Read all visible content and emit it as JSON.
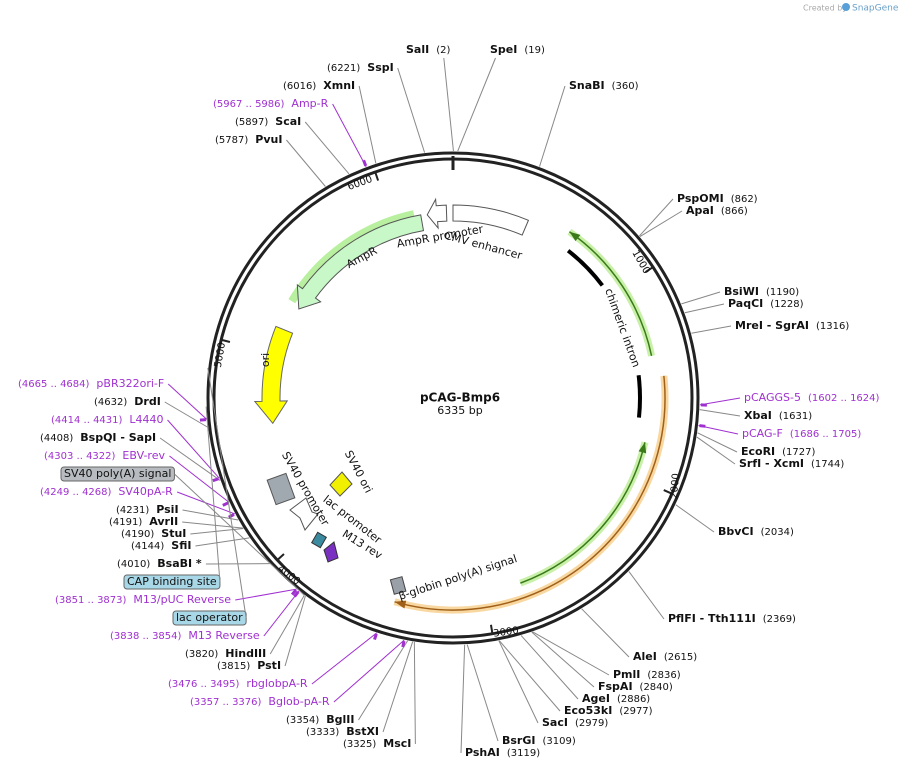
{
  "header": {
    "credit": "Created by",
    "brand": "SnapGene"
  },
  "plasmid": {
    "name": "pCAG-Bmp6",
    "length": "6335 bp"
  },
  "sites": [
    {
      "name": "SalI",
      "position": "(2)"
    },
    {
      "name": "SpeI",
      "position": "(19)"
    },
    {
      "name": "SnaBI",
      "position": "(360)"
    },
    {
      "name": "PspOMI",
      "position": "(862)"
    },
    {
      "name": "ApaI",
      "position": "(866)"
    },
    {
      "name": "BsiWI",
      "position": "(1190)"
    },
    {
      "name": "PaqCI",
      "position": "(1228)"
    },
    {
      "name": "MreI - SgrAI",
      "position": "(1316)"
    },
    {
      "name": "XbaI",
      "position": "(1631)"
    },
    {
      "name": "EcoRI",
      "position": "(1727)"
    },
    {
      "name": "SrfI - XcmI",
      "position": "(1744)"
    },
    {
      "name": "BbvCI",
      "position": "(2034)"
    },
    {
      "name": "PflFI - Tth111I",
      "position": "(2369)"
    },
    {
      "name": "AleI",
      "position": "(2615)"
    },
    {
      "name": "PmlI",
      "position": "(2836)"
    },
    {
      "name": "FspAI",
      "position": "(2840)"
    },
    {
      "name": "AgeI",
      "position": "(2886)"
    },
    {
      "name": "Eco53kI",
      "position": "(2977)"
    },
    {
      "name": "SacI",
      "position": "(2979)"
    },
    {
      "name": "BsrGI",
      "position": "(3109)"
    },
    {
      "name": "PshAI",
      "position": "(3119)"
    },
    {
      "name": "MscI",
      "position": "(3325)"
    },
    {
      "name": "BstXI",
      "position": "(3333)"
    },
    {
      "name": "BglII",
      "position": "(3354)"
    },
    {
      "name": "PstI",
      "position": "(3815)"
    },
    {
      "name": "HindIII",
      "position": "(3820)"
    },
    {
      "name": "BsaBI *",
      "position": "(4010)"
    },
    {
      "name": "SfiI",
      "position": "(4144)"
    },
    {
      "name": "StuI",
      "position": "(4190)"
    },
    {
      "name": "AvrII",
      "position": "(4191)"
    },
    {
      "name": "PsiI",
      "position": "(4231)"
    },
    {
      "name": "BspQI - SapI",
      "position": "(4408)"
    },
    {
      "name": "DrdI",
      "position": "(4632)"
    },
    {
      "name": "PvuI",
      "position": "(5787)"
    },
    {
      "name": "ScaI",
      "position": "(5897)"
    },
    {
      "name": "XmnI",
      "position": "(6016)"
    },
    {
      "name": "SspI",
      "position": "(6221)"
    }
  ],
  "primers": [
    {
      "name": "pCAGGS-5",
      "range": "(1602 .. 1624)"
    },
    {
      "name": "pCAG-F",
      "range": "(1686 .. 1705)"
    },
    {
      "name": "Bglob-pA-R",
      "range": "(3357 .. 3376)"
    },
    {
      "name": "rbglobpA-R",
      "range": "(3476 .. 3495)"
    },
    {
      "name": "M13 Reverse",
      "range": "(3838 .. 3854)"
    },
    {
      "name": "M13/pUC Reverse",
      "range": "(3851 .. 3873)"
    },
    {
      "name": "SV40pA-R",
      "range": "(4249 .. 4268)"
    },
    {
      "name": "EBV-rev",
      "range": "(4303 .. 4322)"
    },
    {
      "name": "L4440",
      "range": "(4414 .. 4431)"
    },
    {
      "name": "pBR322ori-F",
      "range": "(4665 .. 4684)"
    },
    {
      "name": "Amp-R",
      "range": "(5967 .. 5986)"
    }
  ],
  "boxed_features": [
    "SV40 poly(A) signal",
    "CAP binding site",
    "lac operator"
  ],
  "features": [
    "AmpR promoter",
    "CMV enhancer",
    "AmpR",
    "ori",
    "chimeric intron",
    "SV40 ori",
    "SV40 promoter",
    "lac promoter",
    "M13 rev",
    "β-globin poly(A) signal"
  ],
  "ruler": [
    "1000",
    "2000",
    "3000",
    "4000",
    "5000",
    "6000"
  ]
}
